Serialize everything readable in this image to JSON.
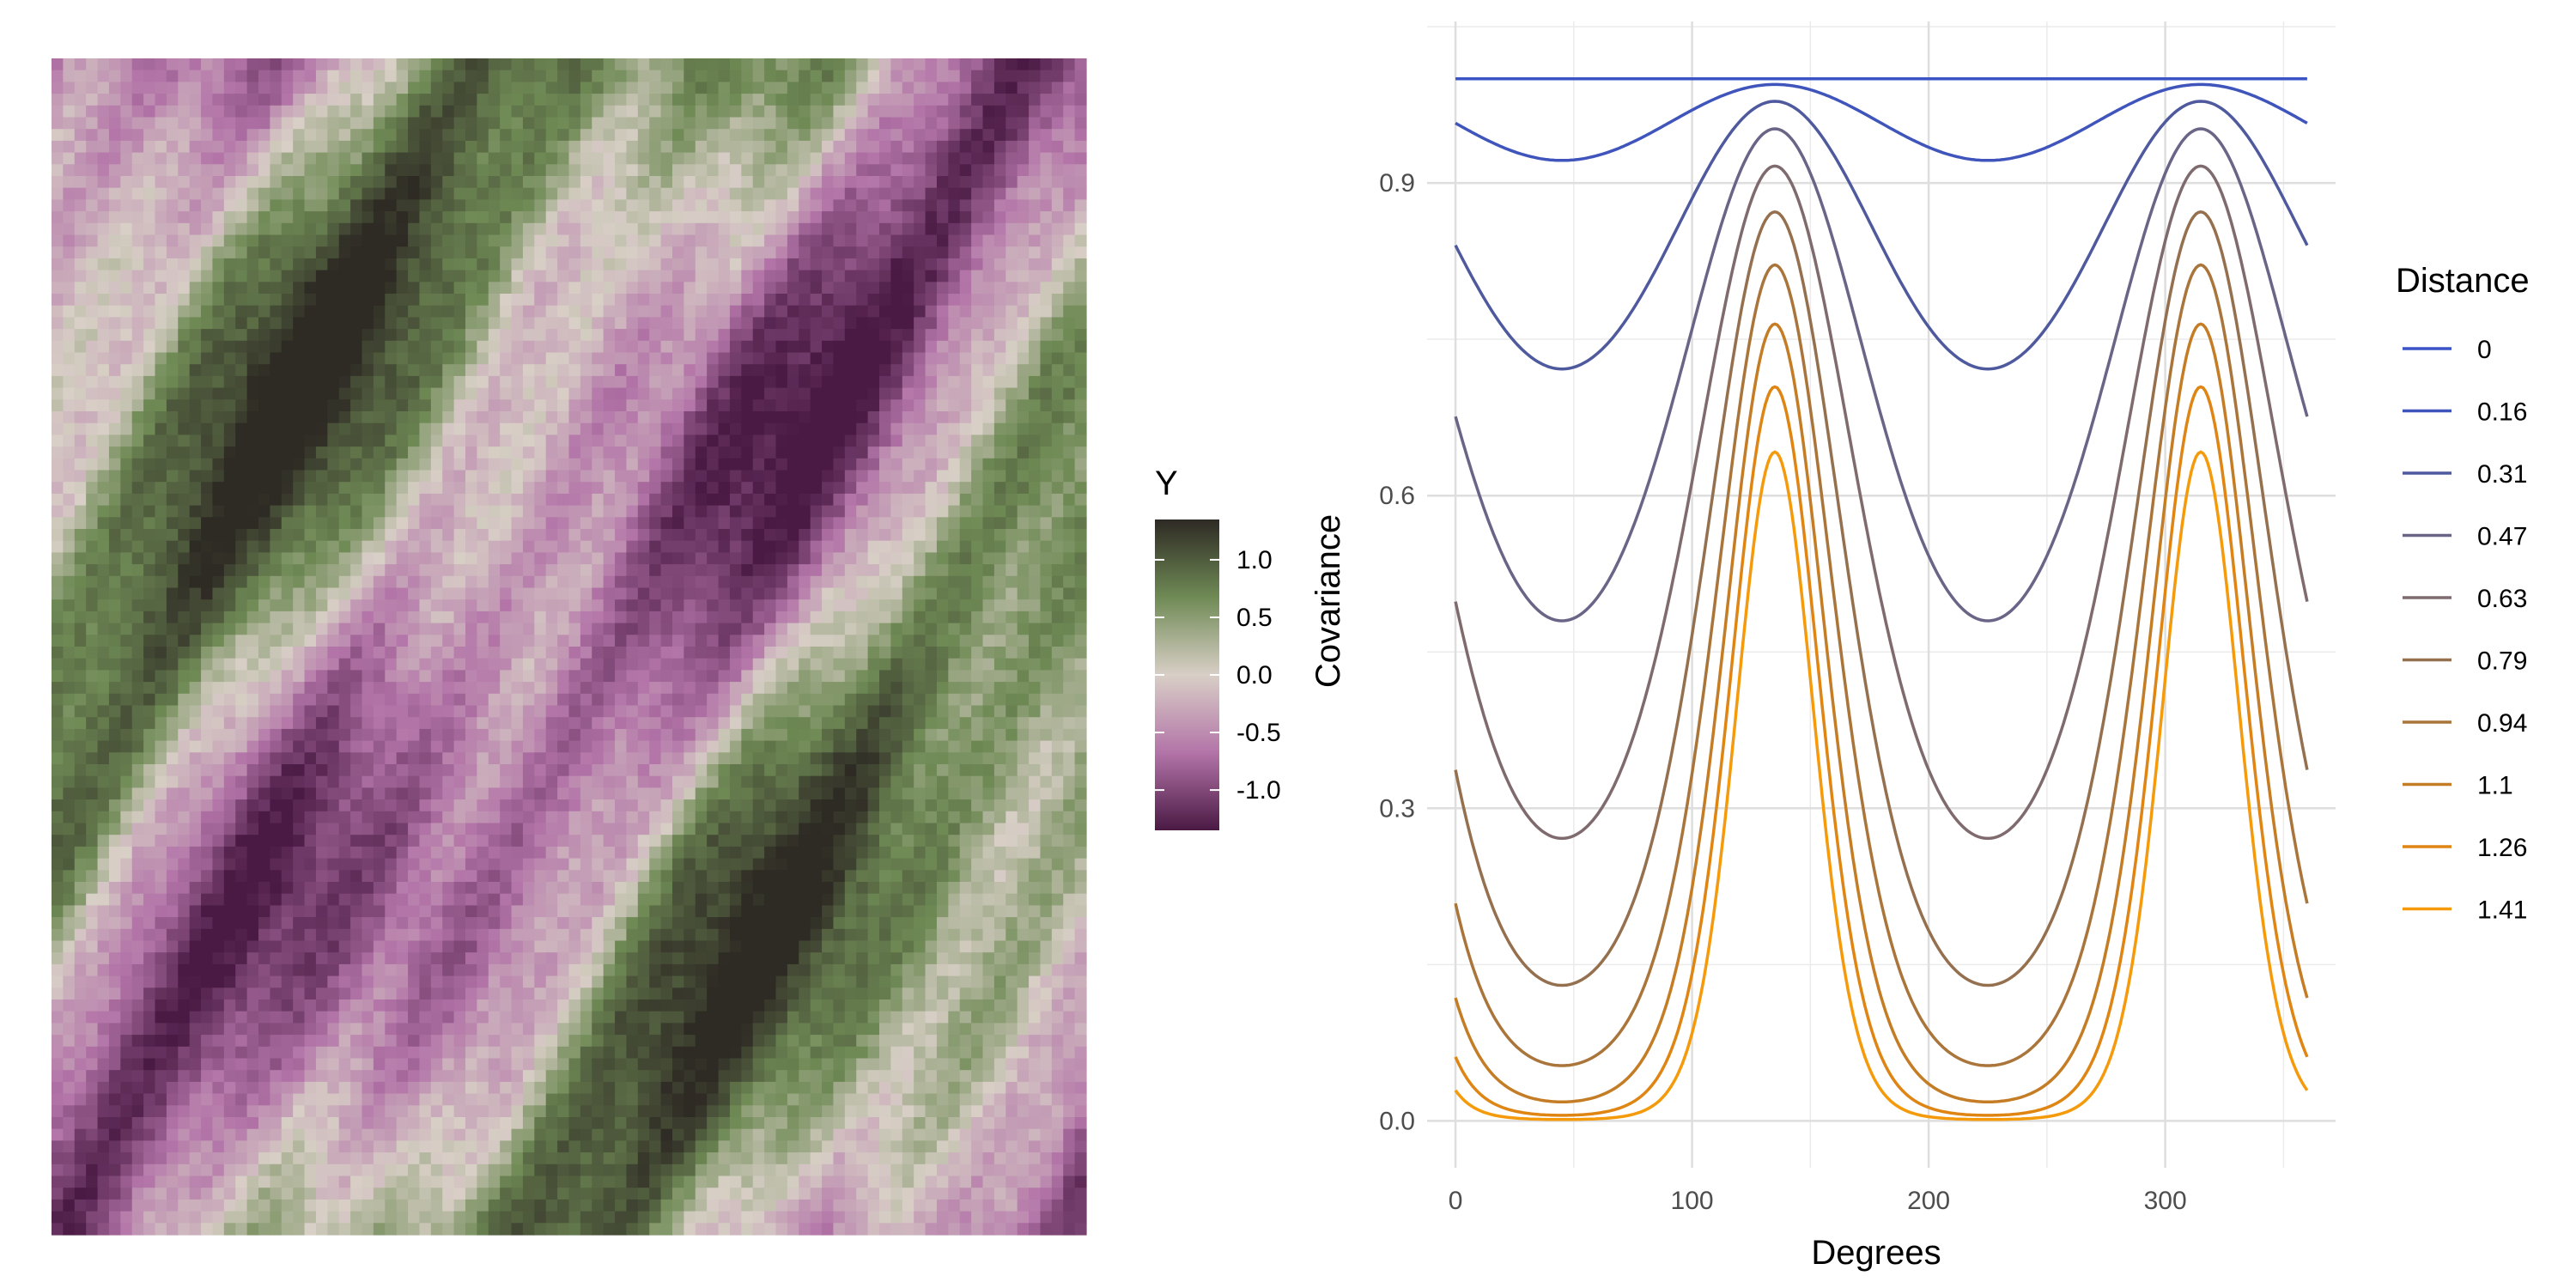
{
  "chart_data": [
    {
      "type": "heatmap",
      "title": "",
      "description_variable": "Y",
      "legend": {
        "title": "Y",
        "ticks": [
          "1.0",
          "0.5",
          "0.0",
          "-0.5",
          "-1.0"
        ],
        "tick_values": [
          1.0,
          0.5,
          0.0,
          -0.5,
          -1.0
        ],
        "range": [
          -1.35,
          1.35
        ]
      },
      "colors": {
        "low": "#4a1a44",
        "mid_low": "#b374a8",
        "mid": "#d8cfc6",
        "mid_high": "#6f8a55",
        "high": "#2e2a24"
      },
      "grid": {
        "cols": 90,
        "rows": 100
      }
    },
    {
      "type": "line",
      "title": "",
      "xlabel": "Degrees",
      "ylabel": "Covariance",
      "xlim": [
        -12,
        372
      ],
      "ylim": [
        -0.045,
        1.055
      ],
      "x_ticks": [
        0,
        100,
        200,
        300
      ],
      "x_tick_labels": [
        "0",
        "100",
        "200",
        "300"
      ],
      "y_ticks": [
        0.0,
        0.3,
        0.6,
        0.9
      ],
      "y_tick_labels": [
        "0.0",
        "0.3",
        "0.6",
        "0.9"
      ],
      "x_range": [
        0,
        360
      ],
      "peak_degrees": [
        135,
        315
      ],
      "trough_degrees": [
        45,
        225
      ],
      "legend": {
        "title": "Distance",
        "placement": "right"
      },
      "series": [
        {
          "name": "0",
          "distance": 0.0,
          "color": "#3a53c6"
        },
        {
          "name": "0.16",
          "distance": 0.157,
          "color": "#3f55bc"
        },
        {
          "name": "0.31",
          "distance": 0.314,
          "color": "#4f5a9e"
        },
        {
          "name": "0.47",
          "distance": 0.471,
          "color": "#6a6486"
        },
        {
          "name": "0.63",
          "distance": 0.628,
          "color": "#7f6a6e"
        },
        {
          "name": "0.79",
          "distance": 0.785,
          "color": "#94704f"
        },
        {
          "name": "0.94",
          "distance": 0.942,
          "color": "#a9753a"
        },
        {
          "name": "1.1",
          "distance": 1.1,
          "color": "#c47c25"
        },
        {
          "name": "1.26",
          "distance": 1.257,
          "color": "#df8514"
        },
        {
          "name": "1.41",
          "distance": 1.414,
          "color": "#f59a0a"
        }
      ]
    }
  ]
}
